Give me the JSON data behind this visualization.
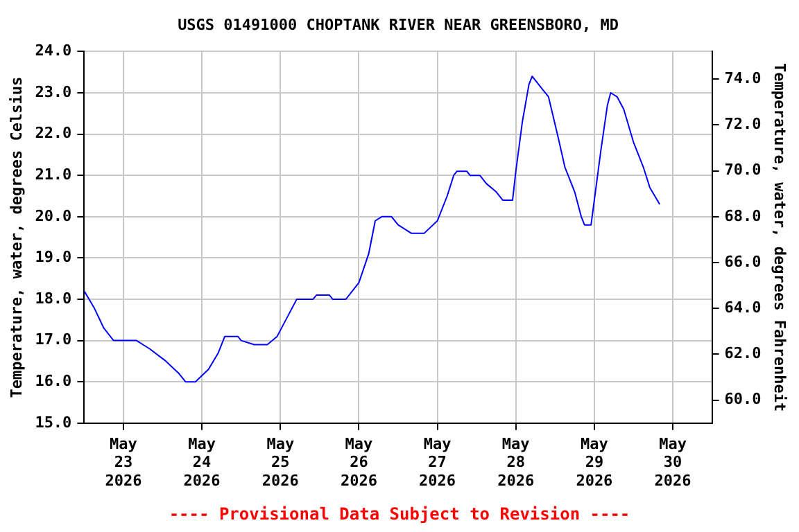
{
  "chart_data": {
    "type": "line",
    "title": "USGS 01491000 CHOPTANK RIVER NEAR GREENSBORO, MD",
    "ylabel": "Temperature, water, degrees Celsius",
    "y2label": "Temperature, water, degrees Fahrenheit",
    "annotations": [
      "---- Provisional Data Subject to Revision ----"
    ],
    "x": [
      "2026-05-22T12:00",
      "2026-05-22T15:00",
      "2026-05-22T18:00",
      "2026-05-22T21:00",
      "2026-05-23T04:00",
      "2026-05-23T08:00",
      "2026-05-23T13:00",
      "2026-05-23T17:00",
      "2026-05-23T19:00",
      "2026-05-23T22:00",
      "2026-05-24T02:00",
      "2026-05-24T05:00",
      "2026-05-24T07:00",
      "2026-05-24T11:00",
      "2026-05-24T12:00",
      "2026-05-24T16:00",
      "2026-05-24T20:00",
      "2026-05-24T23:00",
      "2026-05-25T03:00",
      "2026-05-25T05:00",
      "2026-05-25T10:00",
      "2026-05-25T11:00",
      "2026-05-25T15:00",
      "2026-05-25T16:00",
      "2026-05-25T20:00",
      "2026-05-26T00:00",
      "2026-05-26T03:00",
      "2026-05-26T05:00",
      "2026-05-26T07:00",
      "2026-05-26T10:00",
      "2026-05-26T12:00",
      "2026-05-26T16:00",
      "2026-05-26T20:00",
      "2026-05-27T00:00",
      "2026-05-27T03:00",
      "2026-05-27T05:00",
      "2026-05-27T06:00",
      "2026-05-27T09:00",
      "2026-05-27T10:00",
      "2026-05-27T13:00",
      "2026-05-27T15:00",
      "2026-05-27T18:00",
      "2026-05-27T20:00",
      "2026-05-27T23:00",
      "2026-05-28T00:00",
      "2026-05-28T02:00",
      "2026-05-28T04:00",
      "2026-05-28T05:00",
      "2026-05-28T07:00",
      "2026-05-28T10:00",
      "2026-05-28T13:00",
      "2026-05-28T15:00",
      "2026-05-28T18:00",
      "2026-05-28T20:00",
      "2026-05-28T21:00",
      "2026-05-28T23:00",
      "2026-05-29T00:00",
      "2026-05-29T02:00",
      "2026-05-29T04:00",
      "2026-05-29T05:00",
      "2026-05-29T07:00",
      "2026-05-29T09:00",
      "2026-05-29T12:00",
      "2026-05-29T15:00",
      "2026-05-29T17:00",
      "2026-05-29T20:00"
    ],
    "series": [
      {
        "color": "#0000ff",
        "values": [
          18.2,
          17.8,
          17.3,
          17.0,
          17.0,
          16.8,
          16.5,
          16.2,
          16.0,
          16.0,
          16.3,
          16.7,
          17.1,
          17.1,
          17.0,
          16.9,
          16.9,
          17.1,
          17.7,
          18.0,
          18.0,
          18.1,
          18.1,
          18.0,
          18.0,
          18.4,
          19.1,
          19.9,
          20.0,
          20.0,
          19.8,
          19.6,
          19.6,
          19.9,
          20.5,
          21.0,
          21.1,
          21.1,
          21.0,
          21.0,
          20.8,
          20.6,
          20.4,
          20.4,
          21.1,
          22.3,
          23.2,
          23.4,
          23.2,
          22.9,
          21.9,
          21.2,
          20.6,
          20.0,
          19.8,
          19.8,
          20.4,
          21.6,
          22.7,
          23.0,
          22.9,
          22.6,
          21.8,
          21.2,
          20.7,
          20.3
        ]
      }
    ],
    "xlim": [
      "2026-05-22T12:00",
      "2026-05-30T12:00"
    ],
    "xticks": [
      {
        "value": "2026-05-23",
        "label": "May 23 2026"
      },
      {
        "value": "2026-05-24",
        "label": "May 24 2026"
      },
      {
        "value": "2026-05-25",
        "label": "May 25 2026"
      },
      {
        "value": "2026-05-26",
        "label": "May 26 2026"
      },
      {
        "value": "2026-05-27",
        "label": "May 27 2026"
      },
      {
        "value": "2026-05-28",
        "label": "May 28 2026"
      },
      {
        "value": "2026-05-29",
        "label": "May 29 2026"
      },
      {
        "value": "2026-05-30",
        "label": "May 30 2026"
      }
    ],
    "ylim": [
      15,
      24
    ],
    "yticks": [
      {
        "value": 15,
        "label": "15.0"
      },
      {
        "value": 16,
        "label": "16.0"
      },
      {
        "value": 17,
        "label": "17.0"
      },
      {
        "value": 18,
        "label": "18.0"
      },
      {
        "value": 19,
        "label": "19.0"
      },
      {
        "value": 20,
        "label": "20.0"
      },
      {
        "value": 21,
        "label": "21.0"
      },
      {
        "value": 22,
        "label": "22.0"
      },
      {
        "value": 23,
        "label": "23.0"
      },
      {
        "value": 24,
        "label": "24.0"
      }
    ],
    "y2lim": [
      59,
      75.2
    ],
    "y2ticks": [
      {
        "value": 60,
        "label": "60.0"
      },
      {
        "value": 62,
        "label": "62.0"
      },
      {
        "value": 64,
        "label": "64.0"
      },
      {
        "value": 66,
        "label": "66.0"
      },
      {
        "value": 68,
        "label": "68.0"
      },
      {
        "value": 70,
        "label": "70.0"
      },
      {
        "value": 72,
        "label": "72.0"
      },
      {
        "value": 74,
        "label": "74.0"
      }
    ],
    "grid": true,
    "legend": false,
    "marker": "none",
    "line_style": "solid"
  }
}
